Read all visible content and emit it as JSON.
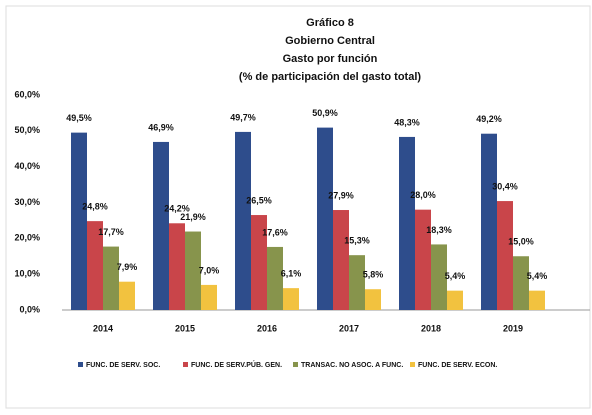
{
  "chart_data": {
    "type": "bar",
    "title": "Gráfico 8",
    "subtitle": [
      "Gobierno Central",
      "Gasto por función",
      "(% de participación del gasto total)"
    ],
    "categories": [
      "2014",
      "2015",
      "2016",
      "2017",
      "2018",
      "2019"
    ],
    "series": [
      {
        "name": "FUNC. DE SERV. SOC.",
        "color": "#2e4d8c",
        "values": [
          49.5,
          46.9,
          49.7,
          50.9,
          48.3,
          49.2
        ],
        "value_labels": [
          "49,5%",
          "46,9%",
          "49,7%",
          "50,9%",
          "48,3%",
          "49,2%"
        ]
      },
      {
        "name": "FUNC. DE SERV.PÚB. GEN.",
        "color": "#c9454a",
        "values": [
          24.8,
          24.2,
          26.5,
          27.9,
          28.0,
          30.4
        ],
        "value_labels": [
          "24,8%",
          "24,2%",
          "26,5%",
          "27,9%",
          "28,0%",
          "30,4%"
        ]
      },
      {
        "name": "TRANSAC. NO ASOC. A FUNC.",
        "color": "#87944c",
        "values": [
          17.7,
          21.9,
          17.6,
          15.3,
          18.3,
          15.0
        ],
        "value_labels": [
          "17,7%",
          "21,9%",
          "17,6%",
          "15,3%",
          "18,3%",
          "15,0%"
        ]
      },
      {
        "name": "FUNC. DE SERV. ECON.",
        "color": "#f2c23f",
        "values": [
          7.9,
          7.0,
          6.1,
          5.8,
          5.4,
          5.4
        ],
        "value_labels": [
          "7,9%",
          "7,0%",
          "6,1%",
          "5,8%",
          "5,4%",
          "5,4%"
        ]
      }
    ],
    "ylim": [
      0,
      60
    ],
    "yticks": [
      {
        "value": 0,
        "label": "0,0%"
      },
      {
        "value": 10,
        "label": "10,0%"
      },
      {
        "value": 20,
        "label": "20,0%"
      },
      {
        "value": 30,
        "label": "30,0%"
      },
      {
        "value": 40,
        "label": "40,0%"
      },
      {
        "value": 50,
        "label": "50,0%"
      },
      {
        "value": 60,
        "label": "60,0%"
      }
    ],
    "grid": false
  }
}
